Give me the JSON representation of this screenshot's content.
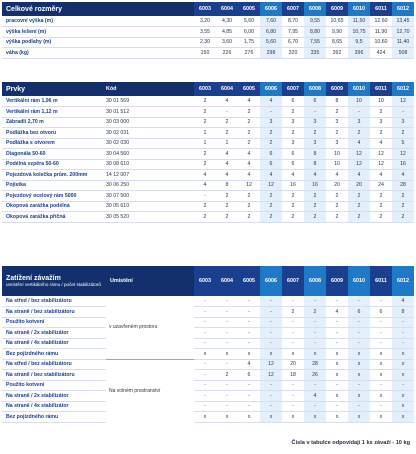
{
  "columns": [
    "6003",
    "6004",
    "6005",
    "6006",
    "6007",
    "6008",
    "6009",
    "6010",
    "6011",
    "6012"
  ],
  "dimensions": {
    "title": "Celkové rozměry",
    "rows": [
      {
        "label": "pracovní výška (m)",
        "values": [
          "3,20",
          "4,30",
          "5,60",
          "7,60",
          "8,70",
          "9,55",
          "10,65",
          "11,50",
          "12,60",
          "13,45"
        ]
      },
      {
        "label": "výška lešení (m)",
        "values": [
          "3,55",
          "4,85",
          "6,00",
          "6,80",
          "7,95",
          "8,80",
          "9,90",
          "10,75",
          "11,90",
          "12,70"
        ]
      },
      {
        "label": "výška podlahy (m)",
        "values": [
          "2,30",
          "3,60",
          "1,75",
          "5,60",
          "6,70",
          "7,55",
          "8,65",
          "9,5",
          "10,60",
          "11,40"
        ]
      },
      {
        "label": "váha (kg)",
        "values": [
          "150",
          "226",
          "276",
          "298",
          "320",
          "335",
          "392",
          "396",
          "424",
          "508"
        ]
      }
    ]
  },
  "parts": {
    "title": "Prvky",
    "code_header": "Kód",
    "rows": [
      {
        "label": "Vertikální rám 1,96 m",
        "code": "30 01 569",
        "values": [
          "2",
          "4",
          "4",
          "4",
          "6",
          "6",
          "8",
          "10",
          "10",
          "12"
        ]
      },
      {
        "label": "Vertikální rám 1,12 m",
        "code": "30 01 512",
        "values": [
          "2",
          "-",
          "2",
          "-",
          "2",
          "-",
          "2",
          "-",
          "2",
          "-"
        ]
      },
      {
        "label": "Zábradlí 2,70 m",
        "code": "30 03 000",
        "values": [
          "2",
          "2",
          "2",
          "3",
          "3",
          "3",
          "3",
          "3",
          "3",
          "3"
        ]
      },
      {
        "label": "Podlážka bez otvoru",
        "code": "30 02 031",
        "values": [
          "1",
          "2",
          "2",
          "2",
          "2",
          "2",
          "2",
          "2",
          "2",
          "2"
        ]
      },
      {
        "label": "Podlážka s otvorem",
        "code": "30 02 030",
        "values": [
          "1",
          "1",
          "2",
          "2",
          "3",
          "3",
          "3",
          "4",
          "4",
          "5"
        ]
      },
      {
        "label": "Diagonála 50-60",
        "code": "30 04 560",
        "values": [
          "2",
          "4",
          "4",
          "6",
          "6",
          "8",
          "10",
          "12",
          "12",
          "12"
        ]
      },
      {
        "label": "Podélná vzpěra 50-60",
        "code": "30 08 610",
        "values": [
          "2",
          "4",
          "4",
          "6",
          "6",
          "8",
          "10",
          "12",
          "12",
          "16"
        ]
      },
      {
        "label": "Pojezdová kolečka prům. 200mm",
        "code": "14 12 007",
        "values": [
          "4",
          "4",
          "4",
          "4",
          "4",
          "4",
          "4",
          "4",
          "4",
          "4"
        ]
      },
      {
        "label": "Pojistka",
        "code": "30 06 250",
        "values": [
          "4",
          "8",
          "12",
          "12",
          "16",
          "16",
          "20",
          "20",
          "24",
          "28"
        ]
      },
      {
        "label": "Pojezdový ocelový rám 5000",
        "code": "30 07 500",
        "values": [
          "-",
          "2",
          "2",
          "2",
          "2",
          "2",
          "2",
          "2",
          "2",
          "2"
        ]
      },
      {
        "label": "Okopová zarážka podélná",
        "code": "30 05 610",
        "values": [
          "2",
          "2",
          "2",
          "2",
          "2",
          "2",
          "2",
          "2",
          "2",
          "2"
        ]
      },
      {
        "label": "Okopová zarážka příčná",
        "code": "30 05 520",
        "values": [
          "2",
          "2",
          "2",
          "2",
          "2",
          "2",
          "2",
          "2",
          "2",
          "2"
        ]
      }
    ]
  },
  "ballast": {
    "title": "Zatížení závažím",
    "subtitle": "umístění vertikálního rámu / počet stabilizátorů",
    "placement_header": "Umístění",
    "groups": [
      {
        "placement": "v uzavřeném prostoru",
        "rows": [
          {
            "label": "Na střed / bez stabilizátoru",
            "values": [
              "-",
              "-",
              "-",
              "-",
              "-",
              "-",
              "-",
              "-",
              "-",
              "4"
            ]
          },
          {
            "label": "Na straně / bez stabilizátoru",
            "values": [
              "-",
              "-",
              "-",
              "-",
              "2",
              "2",
              "4",
              "6",
              "6",
              "8"
            ]
          },
          {
            "label": "Použito kotvení",
            "values": [
              "-",
              "-",
              "-",
              "-",
              "-",
              "-",
              "-",
              "-",
              "-",
              "-"
            ]
          },
          {
            "label": "Na straně / 2x stabilizátor",
            "values": [
              "-",
              "-",
              "-",
              "-",
              "-",
              "-",
              "-",
              "-",
              "-",
              "-"
            ]
          },
          {
            "label": "Na straně / 4x stabilizátor",
            "values": [
              "-",
              "-",
              "-",
              "-",
              "-",
              "-",
              "-",
              "-",
              "-",
              "-"
            ]
          },
          {
            "label": "Bez pojízdného rámu",
            "values": [
              "x",
              "x",
              "x",
              "x",
              "x",
              "x",
              "x",
              "x",
              "x",
              "x"
            ]
          }
        ]
      },
      {
        "placement": "Na volném prostranství",
        "rows": [
          {
            "label": "Na střed / bez stabilizátoru",
            "values": [
              "-",
              "-",
              "4",
              "12",
              "20",
              "28",
              "x",
              "x",
              "x",
              "x"
            ]
          },
          {
            "label": "Na straně / bez stabilizátoru",
            "values": [
              "-",
              "2",
              "6",
              "12",
              "18",
              "26",
              "x",
              "x",
              "x",
              "x"
            ]
          },
          {
            "label": "Použito kotvení",
            "values": [
              "-",
              "-",
              "-",
              "-",
              "-",
              "-",
              "-",
              "-",
              "-",
              "-"
            ]
          },
          {
            "label": "Na straně / 2x stabilizátor",
            "values": [
              "-",
              "-",
              "-",
              "-",
              "-",
              "4",
              "x",
              "x",
              "x",
              "x"
            ]
          },
          {
            "label": "Na straně / 4x stabilizátor",
            "values": [
              "-",
              "-",
              "-",
              "-",
              "-",
              "-",
              "-",
              "-",
              "-",
              "x"
            ]
          },
          {
            "label": "Bez pojízdného rámu",
            "values": [
              "x",
              "x",
              "x",
              "x",
              "x",
              "x",
              "x",
              "x",
              "x",
              "x"
            ]
          }
        ]
      }
    ]
  },
  "footnote": "Čísla v tabulce odpovídají 1 ks závaží - 10 kg",
  "colors": {
    "header": "#1b3f8f",
    "highlight_header": "#1f79c7",
    "highlight_cell": "#e3f0fb"
  }
}
